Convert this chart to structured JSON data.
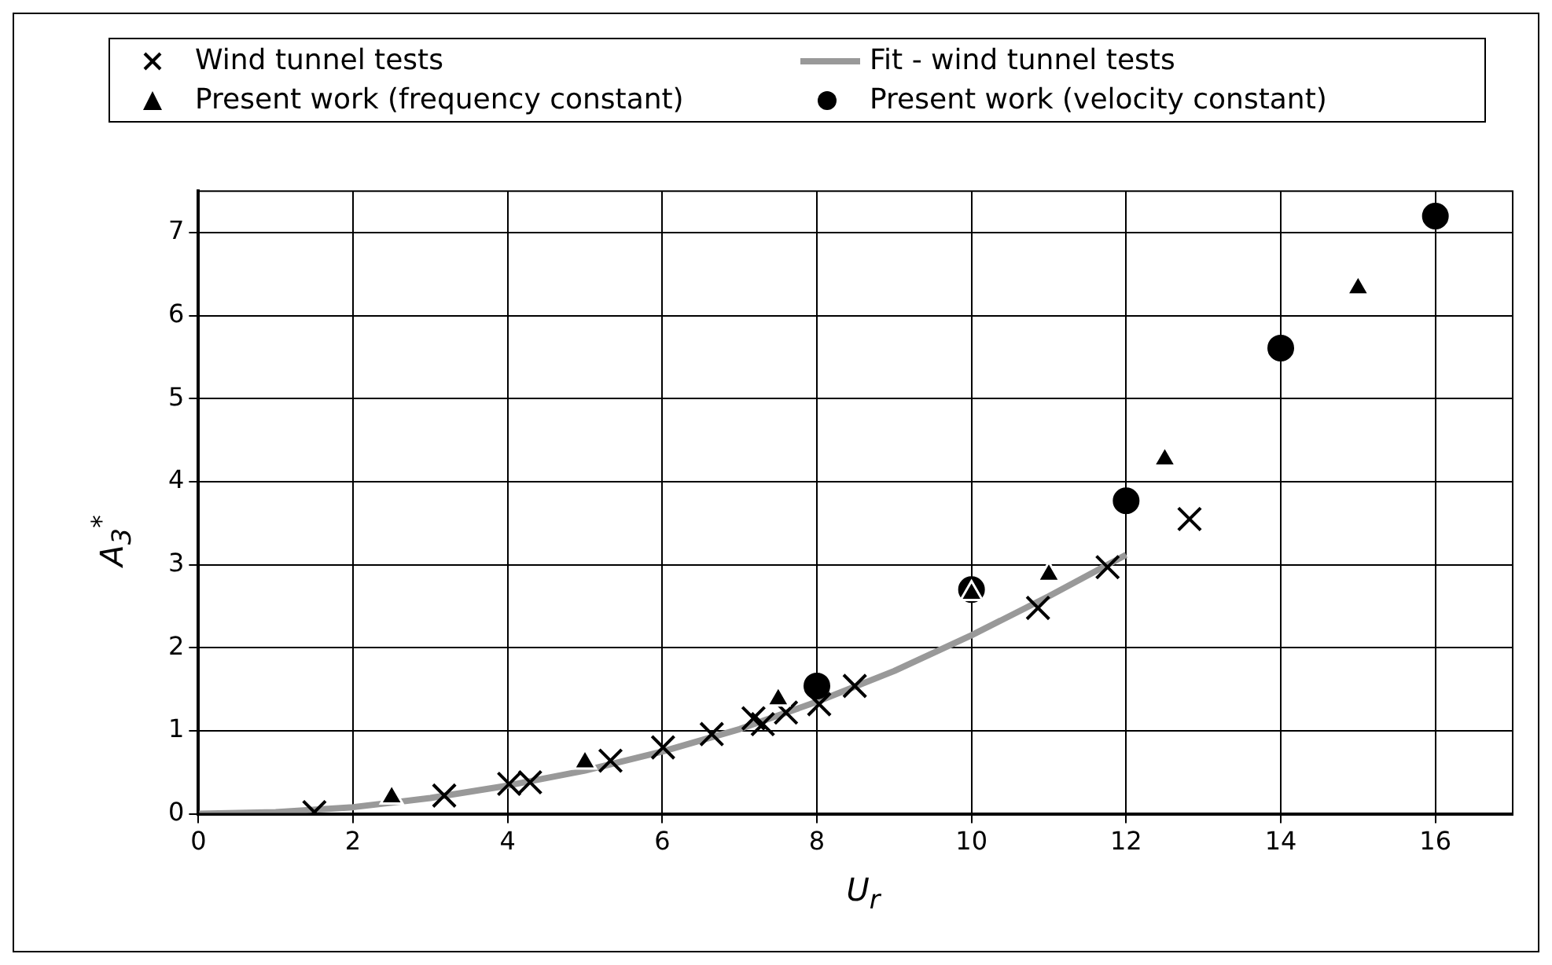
{
  "chart_data": {
    "type": "scatter",
    "xlabel": "U$_{r}$",
    "ylabel": "A$_{3}$$^{*}$",
    "xlim": [
      0,
      17
    ],
    "ylim": [
      0,
      7.5
    ],
    "xticks": [
      0,
      2,
      4,
      6,
      8,
      10,
      12,
      14,
      16
    ],
    "yticks": [
      0,
      1,
      2,
      3,
      4,
      5,
      6,
      7
    ],
    "grid": true,
    "legend": "top",
    "series": [
      {
        "name": "Wind tunnel tests",
        "type": "scatter",
        "marker": "cross",
        "color": "#000000",
        "x": [
          1.5,
          3.18,
          4.02,
          4.29,
          5.33,
          6.01,
          6.64,
          7.18,
          7.3,
          7.6,
          8.03,
          8.49,
          10.86,
          11.76,
          12.82
        ],
        "values": [
          0.02,
          0.22,
          0.36,
          0.38,
          0.64,
          0.8,
          0.96,
          1.15,
          1.08,
          1.22,
          1.32,
          1.54,
          2.48,
          2.97,
          3.55
        ]
      },
      {
        "name": "Fit - wind tunnel tests",
        "type": "line",
        "marker": "none",
        "line_style": "solid",
        "color": "#999999",
        "x": [
          0,
          1,
          2,
          3,
          4,
          5,
          6,
          7,
          8,
          9,
          10,
          11,
          12
        ],
        "values": [
          0,
          0.02,
          0.08,
          0.19,
          0.34,
          0.52,
          0.75,
          1.02,
          1.35,
          1.72,
          2.15,
          2.62,
          3.12
        ]
      },
      {
        "name": "Present work (frequency constant)",
        "type": "scatter",
        "marker": "triangle",
        "color": "#000000",
        "x": [
          2.5,
          5,
          7.5,
          10,
          11,
          12.5,
          15
        ],
        "values": [
          0.2,
          0.62,
          1.38,
          2.65,
          2.88,
          4.27,
          6.33
        ]
      },
      {
        "name": "Present work (velocity constant)",
        "type": "scatter",
        "marker": "circle",
        "color": "#000000",
        "x": [
          8,
          10,
          12,
          14,
          16
        ],
        "values": [
          1.54,
          2.7,
          3.77,
          5.61,
          7.2
        ]
      }
    ]
  }
}
